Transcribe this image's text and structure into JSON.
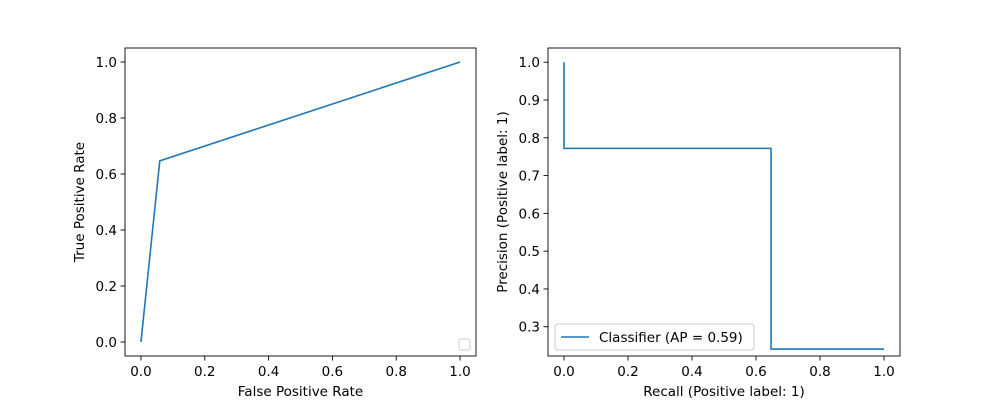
{
  "colors": {
    "series": "#1f77b4",
    "axes": "#000000",
    "legend_border": "#cccccc",
    "background": "#ffffff"
  },
  "chart_data": [
    {
      "type": "line",
      "title": "",
      "xlabel": "False Positive Rate",
      "ylabel": "True Positive Rate",
      "xlim": [
        -0.05,
        1.05
      ],
      "ylim": [
        -0.05,
        1.05
      ],
      "xticks": [
        0.0,
        0.2,
        0.4,
        0.6,
        0.8,
        1.0
      ],
      "xtick_labels": [
        "0.0",
        "0.2",
        "0.4",
        "0.6",
        "0.8",
        "1.0"
      ],
      "yticks": [
        0.0,
        0.2,
        0.4,
        0.6,
        0.8,
        1.0
      ],
      "ytick_labels": [
        "0.0",
        "0.2",
        "0.4",
        "0.6",
        "0.8",
        "1.0"
      ],
      "grid": false,
      "legend": {
        "placement": "lower right",
        "entries": []
      },
      "series": [
        {
          "x": [
            0.0,
            0.059,
            1.0
          ],
          "y": [
            0.0,
            0.647,
            1.0
          ]
        }
      ]
    },
    {
      "type": "line",
      "title": "",
      "drawstyle": "steps-post",
      "xlabel": "Recall (Positive label: 1)",
      "ylabel": "Precision (Positive label: 1)",
      "xlim": [
        -0.05,
        1.05
      ],
      "ylim": [
        0.2226,
        1.0376
      ],
      "xticks": [
        0.0,
        0.2,
        0.4,
        0.6,
        0.8,
        1.0
      ],
      "xtick_labels": [
        "0.0",
        "0.2",
        "0.4",
        "0.6",
        "0.8",
        "1.0"
      ],
      "yticks": [
        0.3,
        0.4,
        0.5,
        0.6,
        0.7,
        0.8,
        0.9,
        1.0
      ],
      "ytick_labels": [
        "0.3",
        "0.4",
        "0.5",
        "0.6",
        "0.7",
        "0.8",
        "0.9",
        "1.0"
      ],
      "grid": false,
      "legend": {
        "placement": "lower left",
        "entries": [
          "Classifier (AP = 0.59)"
        ]
      },
      "series": [
        {
          "name": "Classifier (AP = 0.59)",
          "x": [
            0.0,
            0.0,
            0.647,
            0.647,
            1.0
          ],
          "y": [
            1.0,
            0.772,
            0.772,
            0.241,
            0.241
          ]
        }
      ]
    }
  ]
}
